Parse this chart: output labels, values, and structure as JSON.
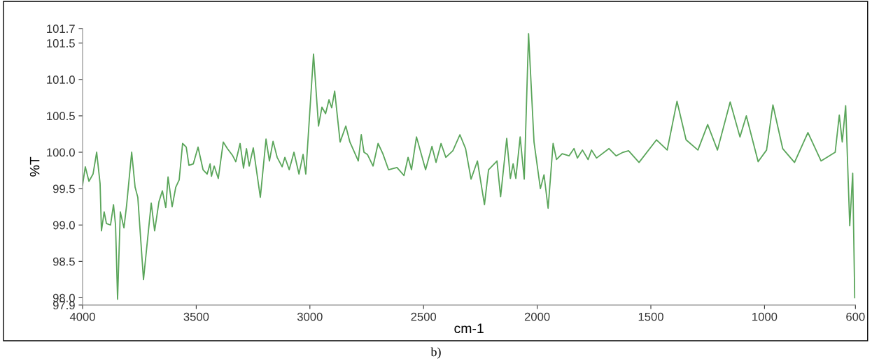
{
  "chart_data": {
    "type": "line",
    "xlabel": "cm-1",
    "ylabel": "%T",
    "annotations": [
      "b)"
    ],
    "xlim": [
      4000,
      600
    ],
    "xticks": [
      4000,
      3500,
      3000,
      2500,
      2000,
      1500,
      1000,
      600
    ],
    "ylim": [
      97.9,
      101.7
    ],
    "yticks": [
      97.9,
      {
        "value": 98,
        "label": "98.0"
      },
      98.5,
      {
        "value": 99,
        "label": "99.0"
      },
      99.5,
      {
        "value": 100,
        "label": "100.0"
      },
      100.5,
      {
        "value": 101,
        "label": "101.0"
      },
      101.5,
      101.7
    ],
    "grid": false,
    "marker": "none",
    "line_style": "solid",
    "series": [
      {
        "color": "#5aa55a",
        "x": [
          4000,
          3988,
          3972,
          3954,
          3938,
          3923,
          3917,
          3905,
          3895,
          3877,
          3864,
          3855,
          3846,
          3834,
          3818,
          3806,
          3784,
          3769,
          3757,
          3732,
          3698,
          3683,
          3664,
          3649,
          3634,
          3624,
          3606,
          3590,
          3575,
          3560,
          3544,
          3532,
          3513,
          3492,
          3470,
          3452,
          3439,
          3433,
          3421,
          3403,
          3381,
          3363,
          3341,
          3326,
          3307,
          3292,
          3279,
          3267,
          3249,
          3218,
          3193,
          3178,
          3162,
          3144,
          3122,
          3110,
          3091,
          3070,
          3048,
          3030,
          3018,
          2984,
          2962,
          2947,
          2931,
          2916,
          2904,
          2891,
          2867,
          2842,
          2824,
          2787,
          2774,
          2762,
          2747,
          2722,
          2700,
          2679,
          2654,
          2617,
          2586,
          2568,
          2553,
          2531,
          2491,
          2463,
          2445,
          2423,
          2402,
          2371,
          2340,
          2315,
          2291,
          2263,
          2232,
          2214,
          2177,
          2161,
          2134,
          2118,
          2106,
          2094,
          2075,
          2057,
          2038,
          2014,
          1986,
          1970,
          1952,
          1930,
          1915,
          1890,
          1860,
          1838,
          1823,
          1801,
          1776,
          1761,
          1739,
          1684,
          1653,
          1622,
          1598,
          1552,
          1475,
          1428,
          1385,
          1345,
          1293,
          1250,
          1207,
          1151,
          1108,
          1080,
          1028,
          991,
          963,
          920,
          868,
          809,
          751,
          689,
          671,
          658,
          643,
          625,
          612,
          603
        ],
        "values": [
          99.55,
          99.8,
          99.6,
          99.7,
          100.0,
          99.57,
          98.92,
          99.18,
          99.02,
          99.0,
          99.28,
          99.0,
          97.98,
          99.18,
          98.96,
          99.28,
          100.0,
          99.52,
          99.38,
          98.25,
          99.3,
          98.92,
          99.32,
          99.47,
          99.24,
          99.66,
          99.25,
          99.52,
          99.62,
          100.12,
          100.07,
          99.82,
          99.84,
          100.07,
          99.76,
          99.7,
          99.84,
          99.67,
          99.81,
          99.64,
          100.14,
          100.05,
          99.96,
          99.87,
          100.12,
          99.78,
          100.05,
          99.81,
          100.06,
          99.38,
          100.18,
          99.88,
          100.15,
          99.93,
          99.8,
          99.93,
          99.76,
          100.0,
          99.7,
          99.97,
          99.7,
          101.35,
          100.36,
          100.62,
          100.53,
          100.72,
          100.61,
          100.84,
          100.14,
          100.36,
          100.14,
          99.88,
          100.24,
          100.0,
          99.97,
          99.81,
          100.12,
          99.98,
          99.76,
          99.79,
          99.68,
          99.93,
          99.76,
          100.21,
          99.76,
          100.08,
          99.86,
          100.12,
          99.93,
          100.02,
          100.24,
          100.05,
          99.63,
          99.88,
          99.28,
          99.76,
          99.88,
          99.39,
          100.19,
          99.64,
          99.84,
          99.64,
          100.21,
          99.63,
          101.63,
          100.14,
          99.5,
          99.69,
          99.23,
          100.12,
          99.9,
          99.98,
          99.95,
          100.05,
          99.92,
          100.03,
          99.9,
          100.03,
          99.92,
          100.05,
          99.95,
          100.0,
          100.02,
          99.86,
          100.17,
          100.03,
          100.7,
          100.17,
          100.03,
          100.38,
          100.03,
          100.69,
          100.21,
          100.5,
          99.87,
          100.03,
          100.65,
          100.05,
          99.86,
          100.27,
          99.88,
          100.0,
          100.51,
          100.14,
          100.64,
          98.99,
          99.71,
          98.0
        ]
      }
    ]
  }
}
